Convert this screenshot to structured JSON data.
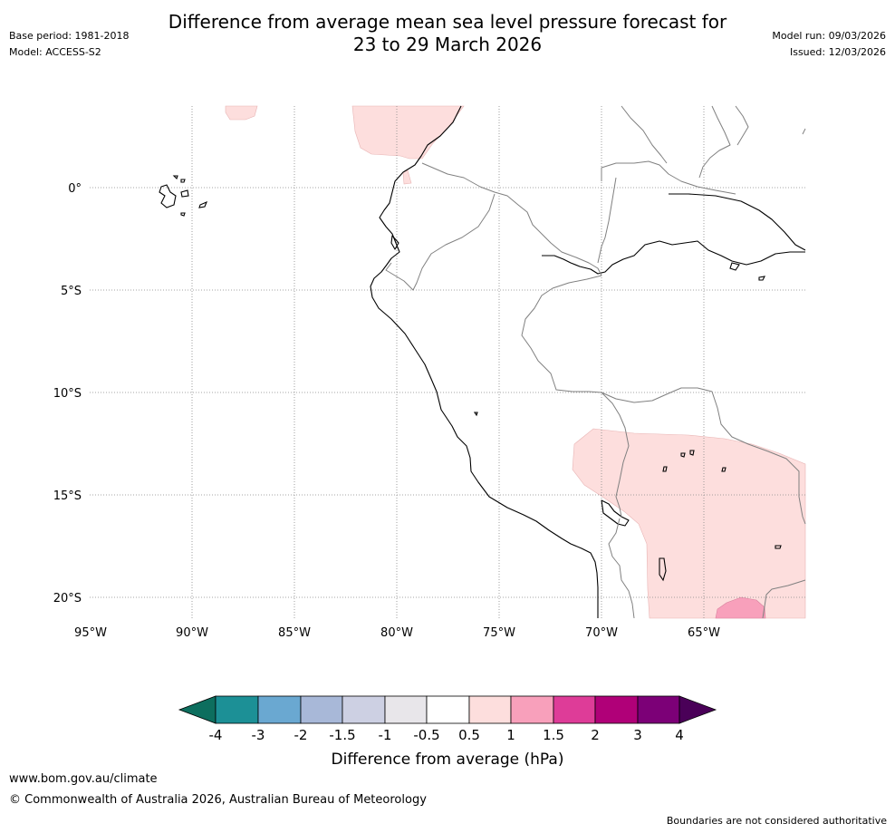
{
  "header": {
    "title_line1": "Difference from average mean sea level pressure forecast for",
    "title_line2": "23 to 29 March 2026",
    "base_period": "Base period: 1981-2018",
    "model": "Model: ACCESS-S2",
    "model_run": "Model run: 09/03/2026",
    "issued": "Issued: 12/03/2026"
  },
  "map": {
    "region": "Western South America",
    "lat_labels": [
      "0°",
      "5°S",
      "10°S",
      "15°S",
      "20°S"
    ],
    "lon_labels": [
      "95°W",
      "90°W",
      "85°W",
      "80°W",
      "75°W",
      "70°W",
      "65°W"
    ],
    "anomaly_fill_colors": {
      "light_pink": "#fddedd",
      "pink": "#f8a0bb"
    },
    "coast_color": "#000000",
    "border_color": "#808080"
  },
  "colorbar": {
    "title": "Difference from average (hPa)",
    "tick_labels": [
      "-4",
      "-3",
      "-2",
      "-1.5",
      "-1",
      "-0.5",
      "0.5",
      "1",
      "1.5",
      "2",
      "3",
      "4"
    ],
    "colors": [
      "#0d6e5e",
      "#1c9096",
      "#6aa8d1",
      "#a8b8d8",
      "#cdd0e3",
      "#e8e6ea",
      "#ffffff",
      "#fddedd",
      "#f8a0bb",
      "#de3c98",
      "#b00078",
      "#7c0077",
      "#4a0058"
    ]
  },
  "footer": {
    "website": "www.bom.gov.au/climate",
    "copyright": "© Commonwealth of Australia 2026, Australian Bureau of Meteorology",
    "disclaimer": "Boundaries are not considered authoritative"
  }
}
